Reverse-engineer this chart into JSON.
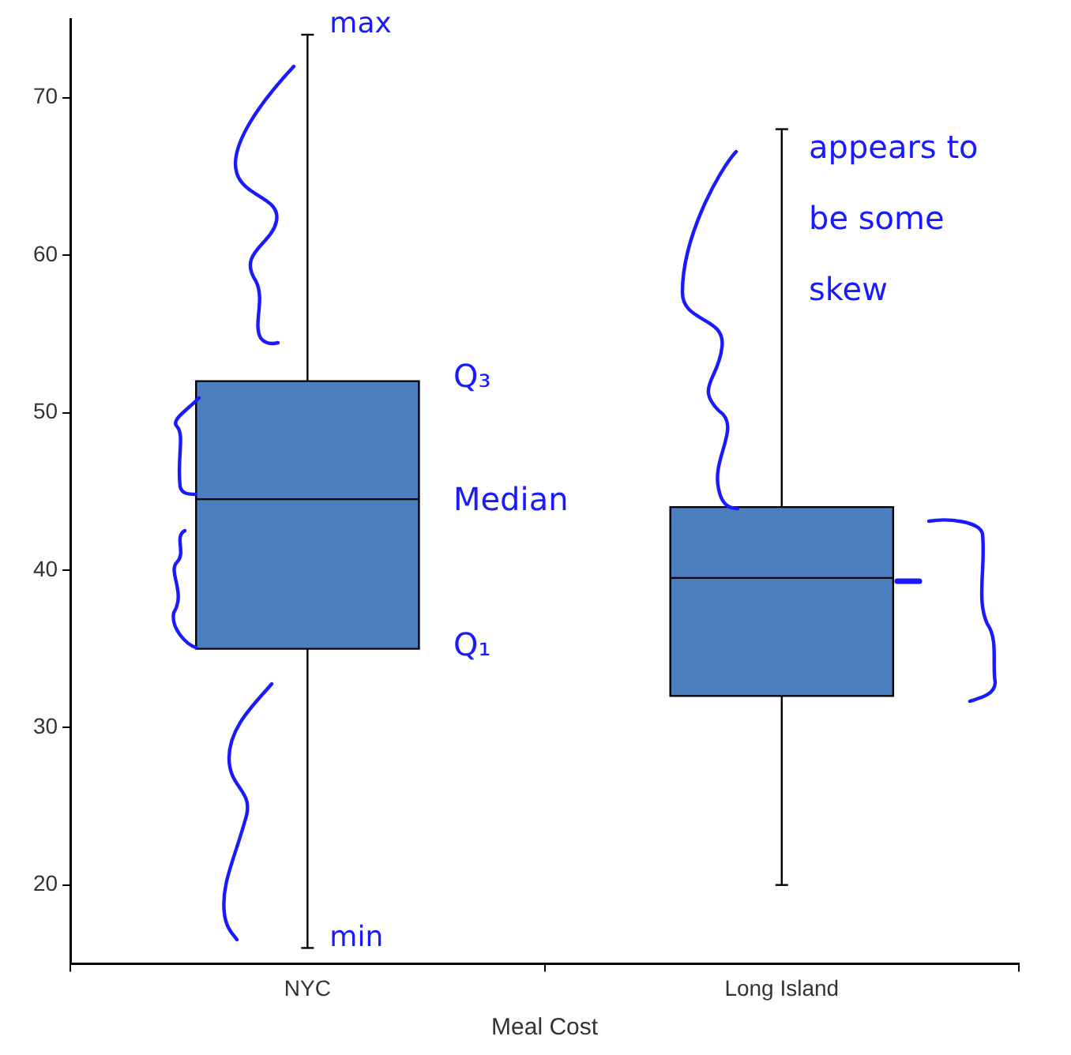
{
  "chart_data": {
    "type": "box",
    "xlabel": "Meal Cost",
    "categories": [
      "NYC",
      "Long Island"
    ],
    "color": "#4a7ebf",
    "boxes": [
      {
        "low": 16,
        "q1": 35,
        "median": 44.5,
        "q3": 52,
        "high": 74
      },
      {
        "low": 20,
        "q1": 32,
        "median": 39.5,
        "q3": 44,
        "high": 68
      }
    ],
    "ylim": [
      15,
      75
    ],
    "yticks": [
      20,
      30,
      40,
      50,
      60,
      70
    ],
    "grid": false,
    "annotations": [
      {
        "text": "max",
        "x": "NYC",
        "y": 74
      },
      "Q₃",
      "Median",
      "Q₁",
      {
        "text": "min",
        "x": "NYC",
        "y": 16
      },
      "appears to be some skew"
    ]
  }
}
